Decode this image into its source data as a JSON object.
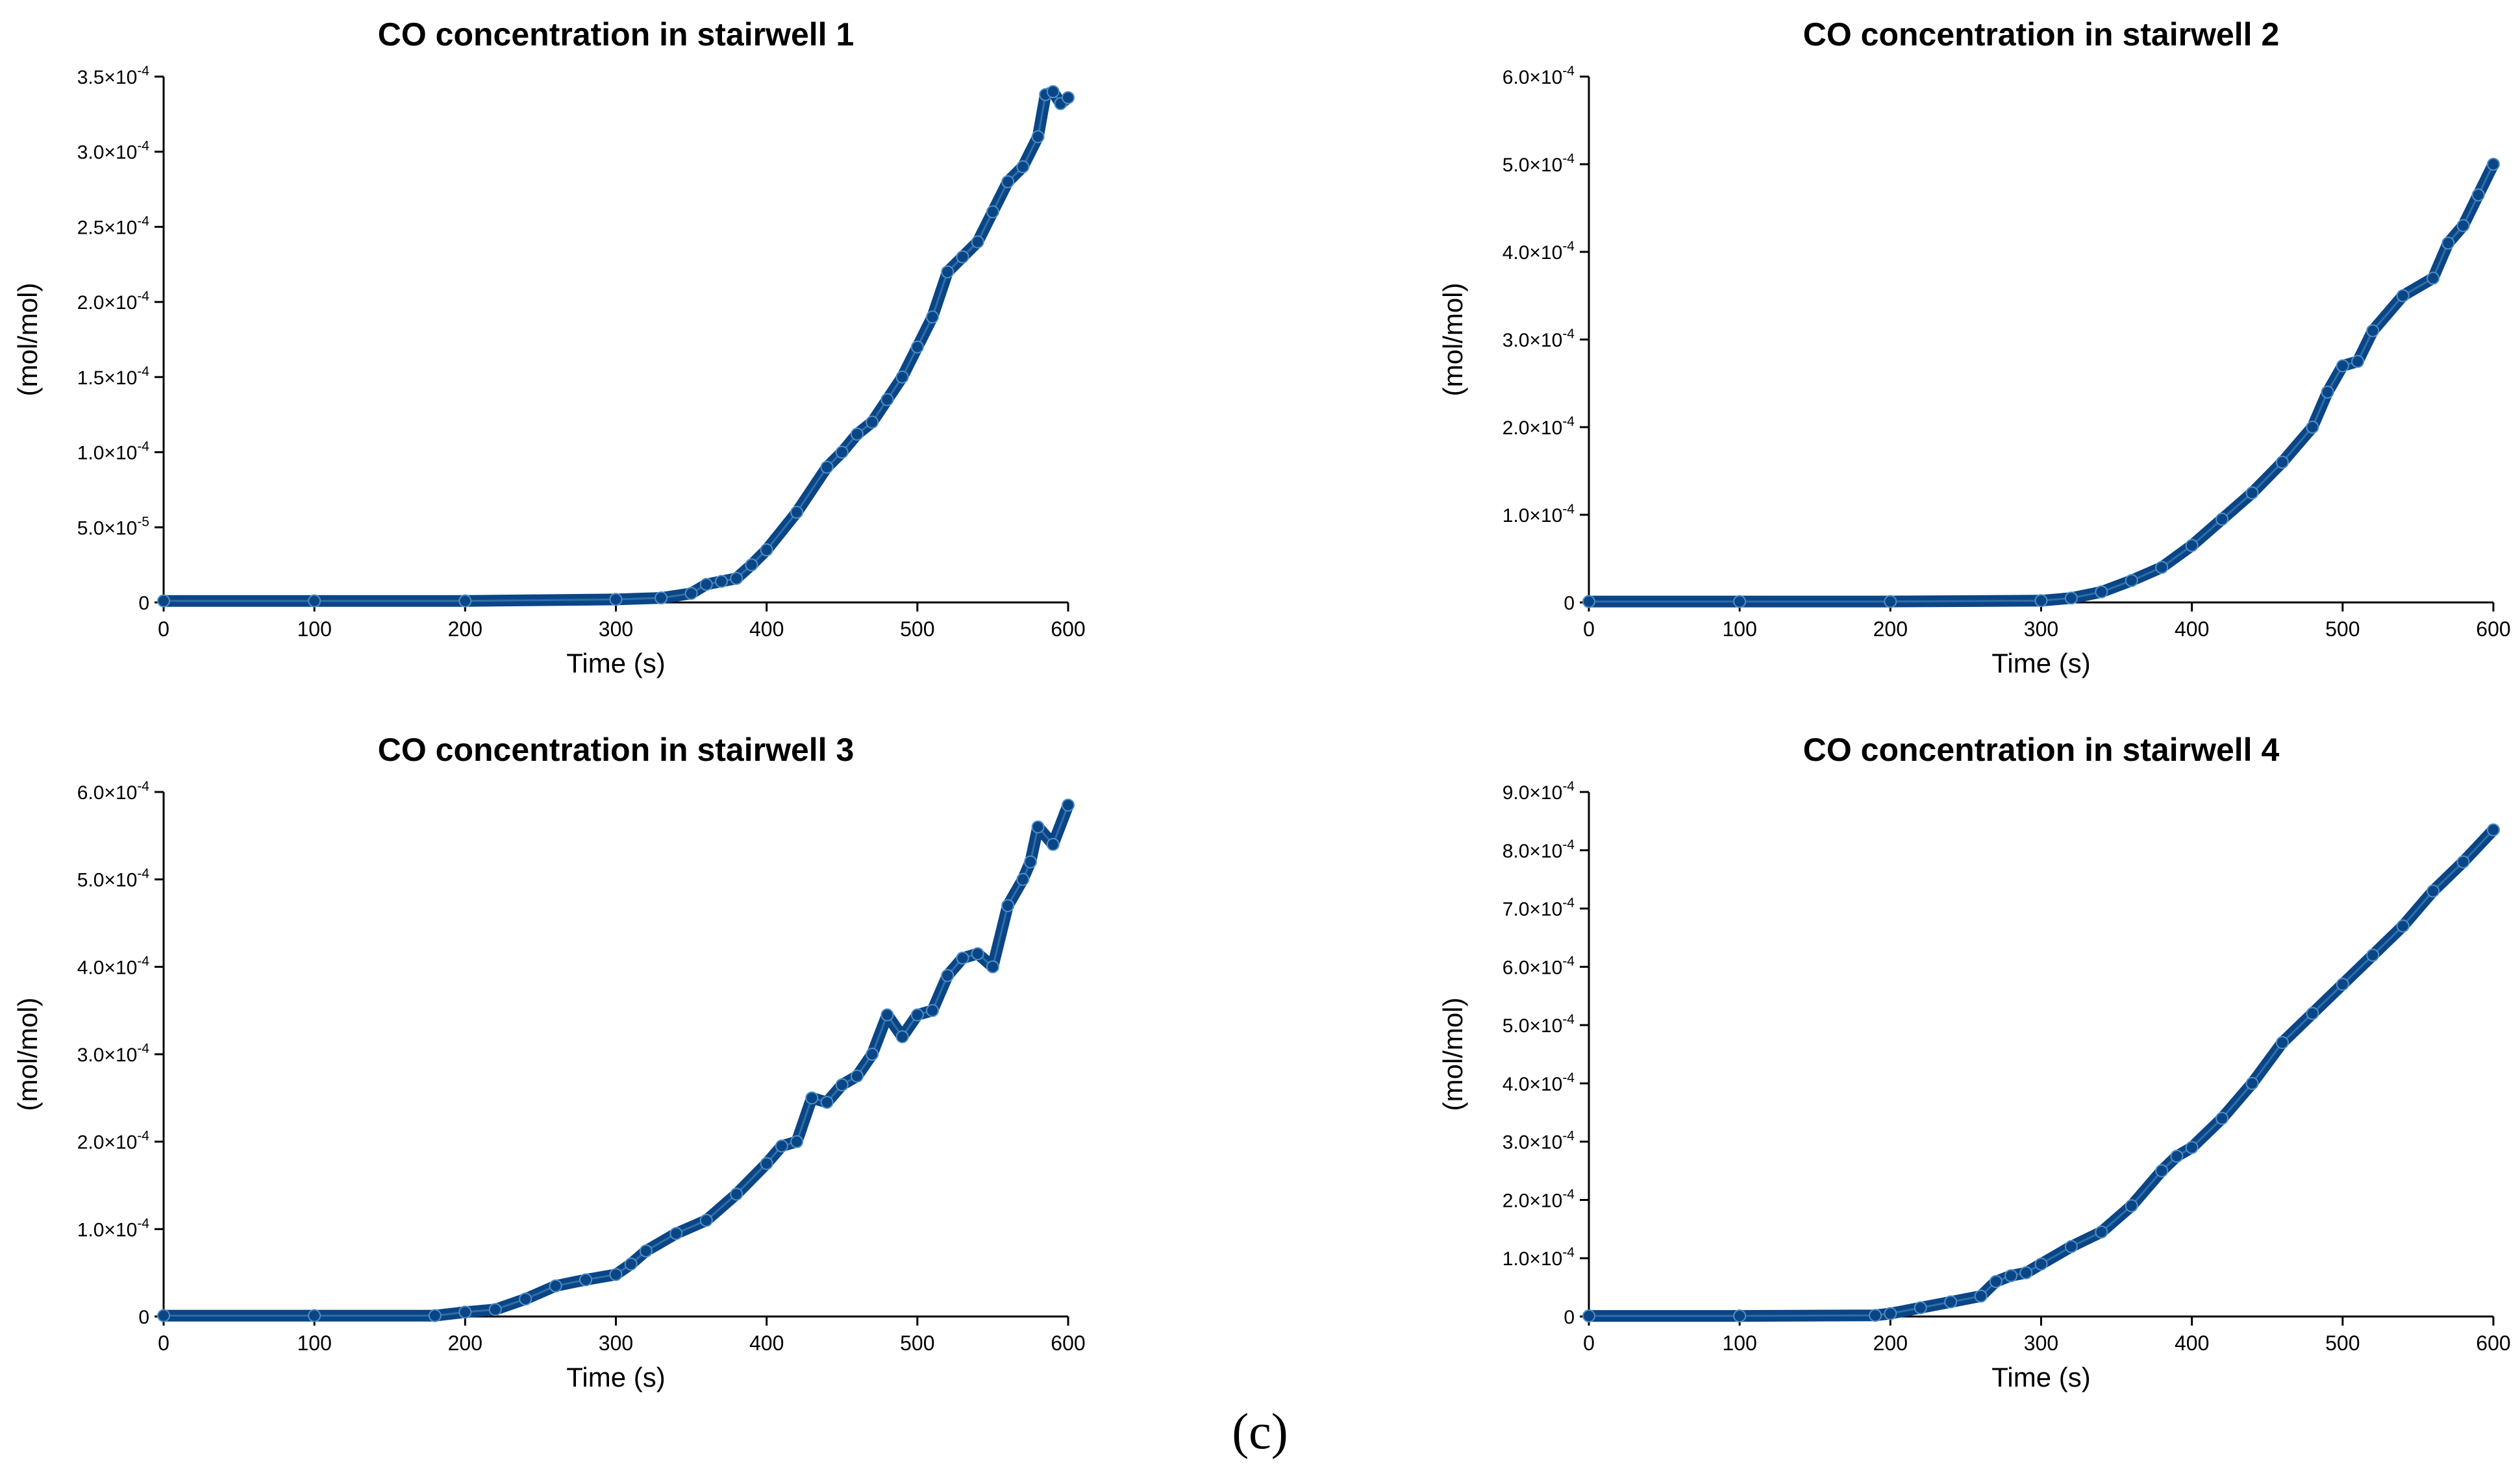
{
  "caption": "(c)",
  "colors": {
    "series": "#0a4586",
    "series_highlight": "#4f8fc6",
    "axis": "#000000"
  },
  "chart_data": [
    {
      "type": "scatter",
      "title": "CO concentration in stairwell 1",
      "xlabel": "Time (s)",
      "ylabel": "(mol/mol)",
      "xlim": [
        0,
        600
      ],
      "ylim": [
        0,
        0.00035
      ],
      "x_ticks": [
        0,
        100,
        200,
        300,
        400,
        500,
        600
      ],
      "x_tick_labels": [
        "0",
        "100",
        "200",
        "300",
        "400",
        "500",
        "600"
      ],
      "y_ticks": [
        0,
        5e-05,
        0.0001,
        0.00015,
        0.0002,
        0.00025,
        0.0003,
        0.00035
      ],
      "y_tick_labels": [
        {
          "mantissa": "0",
          "exponent": ""
        },
        {
          "mantissa": "5.0",
          "exponent": "-5"
        },
        {
          "mantissa": "1.0",
          "exponent": "-4"
        },
        {
          "mantissa": "1.5",
          "exponent": "-4"
        },
        {
          "mantissa": "2.0",
          "exponent": "-4"
        },
        {
          "mantissa": "2.5",
          "exponent": "-4"
        },
        {
          "mantissa": "3.0",
          "exponent": "-4"
        },
        {
          "mantissa": "3.5",
          "exponent": "-4"
        }
      ],
      "grid": false,
      "series": [
        {
          "x": [
            0,
            100,
            200,
            300,
            330,
            350,
            360,
            370,
            380,
            390,
            400,
            420,
            440,
            450,
            460,
            470,
            480,
            490,
            500,
            510,
            520,
            530,
            540,
            550,
            560,
            570,
            580,
            585,
            590,
            595,
            600
          ],
          "y": [
            1e-06,
            1e-06,
            1e-06,
            2e-06,
            3e-06,
            6e-06,
            1.2e-05,
            1.4e-05,
            1.6e-05,
            2.5e-05,
            3.5e-05,
            6e-05,
            9e-05,
            0.0001,
            0.000112,
            0.00012,
            0.000135,
            0.00015,
            0.00017,
            0.00019,
            0.00022,
            0.00023,
            0.00024,
            0.00026,
            0.00028,
            0.00029,
            0.00031,
            0.000338,
            0.00034,
            0.000332,
            0.000336
          ]
        }
      ]
    },
    {
      "type": "scatter",
      "title": "CO concentration in stairwell 2",
      "xlabel": "Time (s)",
      "ylabel": "(mol/mol)",
      "xlim": [
        0,
        600
      ],
      "ylim": [
        0,
        0.0006
      ],
      "x_ticks": [
        0,
        100,
        200,
        300,
        400,
        500,
        600
      ],
      "x_tick_labels": [
        "0",
        "100",
        "200",
        "300",
        "400",
        "500",
        "600"
      ],
      "y_ticks": [
        0,
        0.0001,
        0.0002,
        0.0003,
        0.0004,
        0.0005,
        0.0006
      ],
      "y_tick_labels": [
        {
          "mantissa": "0",
          "exponent": ""
        },
        {
          "mantissa": "1.0",
          "exponent": "-4"
        },
        {
          "mantissa": "2.0",
          "exponent": "-4"
        },
        {
          "mantissa": "3.0",
          "exponent": "-4"
        },
        {
          "mantissa": "4.0",
          "exponent": "-4"
        },
        {
          "mantissa": "5.0",
          "exponent": "-4"
        },
        {
          "mantissa": "6.0",
          "exponent": "-4"
        }
      ],
      "grid": false,
      "series": [
        {
          "x": [
            0,
            100,
            200,
            300,
            320,
            340,
            360,
            380,
            400,
            420,
            440,
            460,
            480,
            490,
            500,
            510,
            520,
            540,
            560,
            570,
            580,
            590,
            600
          ],
          "y": [
            1e-06,
            1e-06,
            1e-06,
            2e-06,
            5e-06,
            1.2e-05,
            2.5e-05,
            4e-05,
            6.5e-05,
            9.5e-05,
            0.000125,
            0.00016,
            0.0002,
            0.00024,
            0.00027,
            0.000275,
            0.00031,
            0.00035,
            0.00037,
            0.00041,
            0.00043,
            0.000465,
            0.0005
          ]
        }
      ]
    },
    {
      "type": "scatter",
      "title": "CO concentration in stairwell 3",
      "xlabel": "Time (s)",
      "ylabel": "(mol/mol)",
      "xlim": [
        0,
        600
      ],
      "ylim": [
        0,
        0.0006
      ],
      "x_ticks": [
        0,
        100,
        200,
        300,
        400,
        500,
        600
      ],
      "x_tick_labels": [
        "0",
        "100",
        "200",
        "300",
        "400",
        "500",
        "600"
      ],
      "y_ticks": [
        0,
        0.0001,
        0.0002,
        0.0003,
        0.0004,
        0.0005,
        0.0006
      ],
      "y_tick_labels": [
        {
          "mantissa": "0",
          "exponent": ""
        },
        {
          "mantissa": "1.0",
          "exponent": "-4"
        },
        {
          "mantissa": "2.0",
          "exponent": "-4"
        },
        {
          "mantissa": "3.0",
          "exponent": "-4"
        },
        {
          "mantissa": "4.0",
          "exponent": "-4"
        },
        {
          "mantissa": "5.0",
          "exponent": "-4"
        },
        {
          "mantissa": "6.0",
          "exponent": "-4"
        }
      ],
      "grid": false,
      "series": [
        {
          "x": [
            0,
            100,
            180,
            200,
            220,
            240,
            260,
            280,
            300,
            310,
            320,
            340,
            360,
            380,
            400,
            410,
            420,
            430,
            440,
            450,
            460,
            470,
            480,
            490,
            500,
            510,
            520,
            530,
            540,
            550,
            560,
            570,
            575,
            580,
            590,
            600
          ],
          "y": [
            1e-06,
            1e-06,
            1e-06,
            5e-06,
            8e-06,
            2e-05,
            3.5e-05,
            4.2e-05,
            4.8e-05,
            6e-05,
            7.5e-05,
            9.5e-05,
            0.00011,
            0.00014,
            0.000175,
            0.000195,
            0.0002,
            0.00025,
            0.000245,
            0.000265,
            0.000275,
            0.0003,
            0.000345,
            0.00032,
            0.000345,
            0.00035,
            0.00039,
            0.00041,
            0.000415,
            0.0004,
            0.00047,
            0.0005,
            0.00052,
            0.00056,
            0.00054,
            0.000585
          ]
        }
      ]
    },
    {
      "type": "scatter",
      "title": "CO concentration in stairwell 4",
      "xlabel": "Time (s)",
      "ylabel": "(mol/mol)",
      "xlim": [
        0,
        600
      ],
      "ylim": [
        0,
        0.0009
      ],
      "x_ticks": [
        0,
        100,
        200,
        300,
        400,
        500,
        600
      ],
      "x_tick_labels": [
        "0",
        "100",
        "200",
        "300",
        "400",
        "500",
        "600"
      ],
      "y_ticks": [
        0,
        0.0001,
        0.0002,
        0.0003,
        0.0004,
        0.0005,
        0.0006,
        0.0007,
        0.0008,
        0.0009
      ],
      "y_tick_labels": [
        {
          "mantissa": "0",
          "exponent": ""
        },
        {
          "mantissa": "1.0",
          "exponent": "-4"
        },
        {
          "mantissa": "2.0",
          "exponent": "-4"
        },
        {
          "mantissa": "3.0",
          "exponent": "-4"
        },
        {
          "mantissa": "4.0",
          "exponent": "-4"
        },
        {
          "mantissa": "5.0",
          "exponent": "-4"
        },
        {
          "mantissa": "6.0",
          "exponent": "-4"
        },
        {
          "mantissa": "7.0",
          "exponent": "-4"
        },
        {
          "mantissa": "8.0",
          "exponent": "-4"
        },
        {
          "mantissa": "9.0",
          "exponent": "-4"
        }
      ],
      "grid": false,
      "series": [
        {
          "x": [
            0,
            100,
            190,
            200,
            220,
            240,
            260,
            270,
            280,
            290,
            300,
            320,
            340,
            360,
            380,
            390,
            400,
            420,
            440,
            460,
            480,
            500,
            520,
            540,
            560,
            580,
            600
          ],
          "y": [
            1e-06,
            1e-06,
            2e-06,
            5e-06,
            1.5e-05,
            2.5e-05,
            3.5e-05,
            6e-05,
            7e-05,
            7.5e-05,
            9e-05,
            0.00012,
            0.000145,
            0.00019,
            0.00025,
            0.000275,
            0.00029,
            0.00034,
            0.0004,
            0.00047,
            0.00052,
            0.00057,
            0.00062,
            0.00067,
            0.00073,
            0.00078,
            0.000835
          ]
        }
      ]
    }
  ]
}
